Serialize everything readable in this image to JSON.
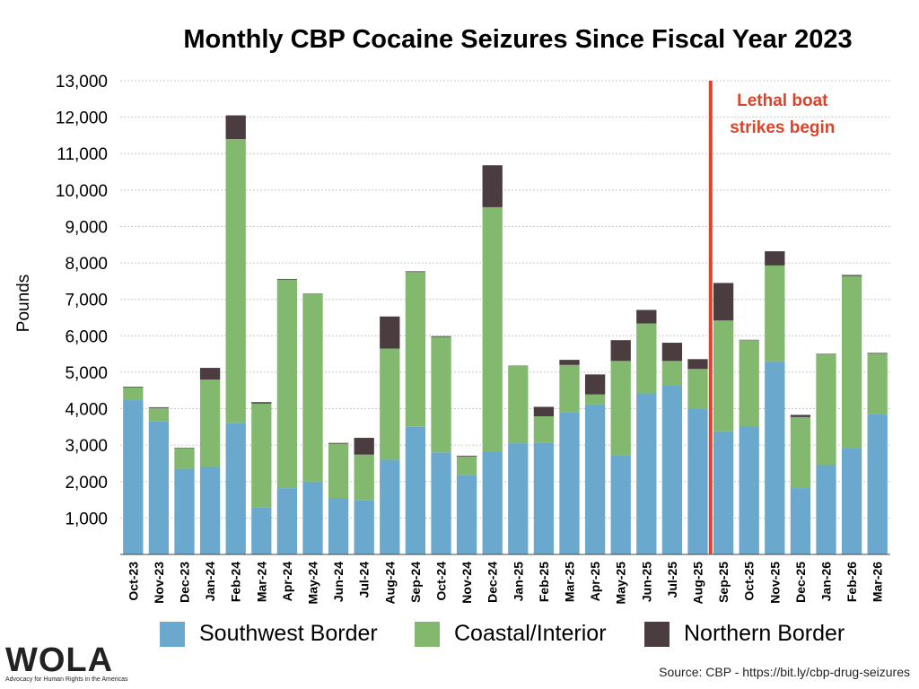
{
  "title": "Monthly CBP Cocaine Seizures Since Fiscal Year 2023",
  "source": "Source: CBP - https://bit.ly/cbp-drug-seizures",
  "logo": {
    "text": "WOLA",
    "tagline": "Advocacy for Human Rights in the Americas"
  },
  "colors": {
    "southwest": "#6aa8cd",
    "coastal": "#82b96e",
    "northern": "#4b3d3f",
    "annotation": "#d9442c",
    "grid": "#c8c8c8"
  },
  "chart_data": {
    "type": "bar",
    "stacked": true,
    "title": "Monthly CBP Cocaine Seizures Since Fiscal Year 2023",
    "xlabel": "",
    "ylabel": "Pounds",
    "ylim": [
      0,
      13000
    ],
    "yticks": [
      1000,
      2000,
      3000,
      4000,
      5000,
      6000,
      7000,
      8000,
      9000,
      10000,
      11000,
      12000,
      13000
    ],
    "ytick_labels": [
      "1,000",
      "2,000",
      "3,000",
      "4,000",
      "5,000",
      "6,000",
      "7,000",
      "8,000",
      "9,000",
      "10,000",
      "11,000",
      "12,000",
      "13,000"
    ],
    "grid": "horizontal dotted",
    "legend_position": "bottom",
    "categories": [
      "Oct-23",
      "Nov-23",
      "Dec-23",
      "Jan-24",
      "Feb-24",
      "Mar-24",
      "Apr-24",
      "May-24",
      "Jun-24",
      "Jul-24",
      "Aug-24",
      "Sep-24",
      "Oct-24",
      "Nov-24",
      "Dec-24",
      "Jan-25",
      "Feb-25",
      "Mar-25",
      "Apr-25",
      "May-25",
      "Jun-25",
      "Jul-25",
      "Aug-25",
      "Sep-25",
      "Oct-25",
      "Nov-25",
      "Dec-25",
      "Jan-26",
      "Feb-26",
      "Mar-26"
    ],
    "series": [
      {
        "name": "Southwest Border",
        "values": [
          4250,
          3650,
          2350,
          2400,
          3600,
          1300,
          1820,
          2000,
          1550,
          1480,
          2600,
          3500,
          2800,
          2170,
          2830,
          3050,
          3070,
          3900,
          4120,
          2730,
          4420,
          4650,
          4000,
          3380,
          3520,
          5300,
          1820,
          2450,
          2920,
          3850
        ]
      },
      {
        "name": "Coastal/Interior",
        "values": [
          330,
          370,
          570,
          2400,
          7800,
          2840,
          5720,
          5150,
          1490,
          1260,
          3050,
          4250,
          3170,
          520,
          6700,
          2120,
          720,
          1300,
          270,
          2580,
          1920,
          660,
          1090,
          3040,
          2360,
          2630,
          1950,
          3050,
          4720,
          1660
        ]
      },
      {
        "name": "Northern Border",
        "values": [
          20,
          20,
          10,
          320,
          650,
          40,
          20,
          10,
          20,
          460,
          880,
          20,
          20,
          20,
          1150,
          10,
          260,
          140,
          550,
          570,
          370,
          500,
          270,
          1030,
          10,
          390,
          60,
          10,
          30,
          20
        ]
      }
    ],
    "annotation": {
      "text_lines": [
        "Lethal boat",
        "strikes begin"
      ],
      "between": [
        "Aug-25",
        "Sep-25"
      ]
    }
  }
}
